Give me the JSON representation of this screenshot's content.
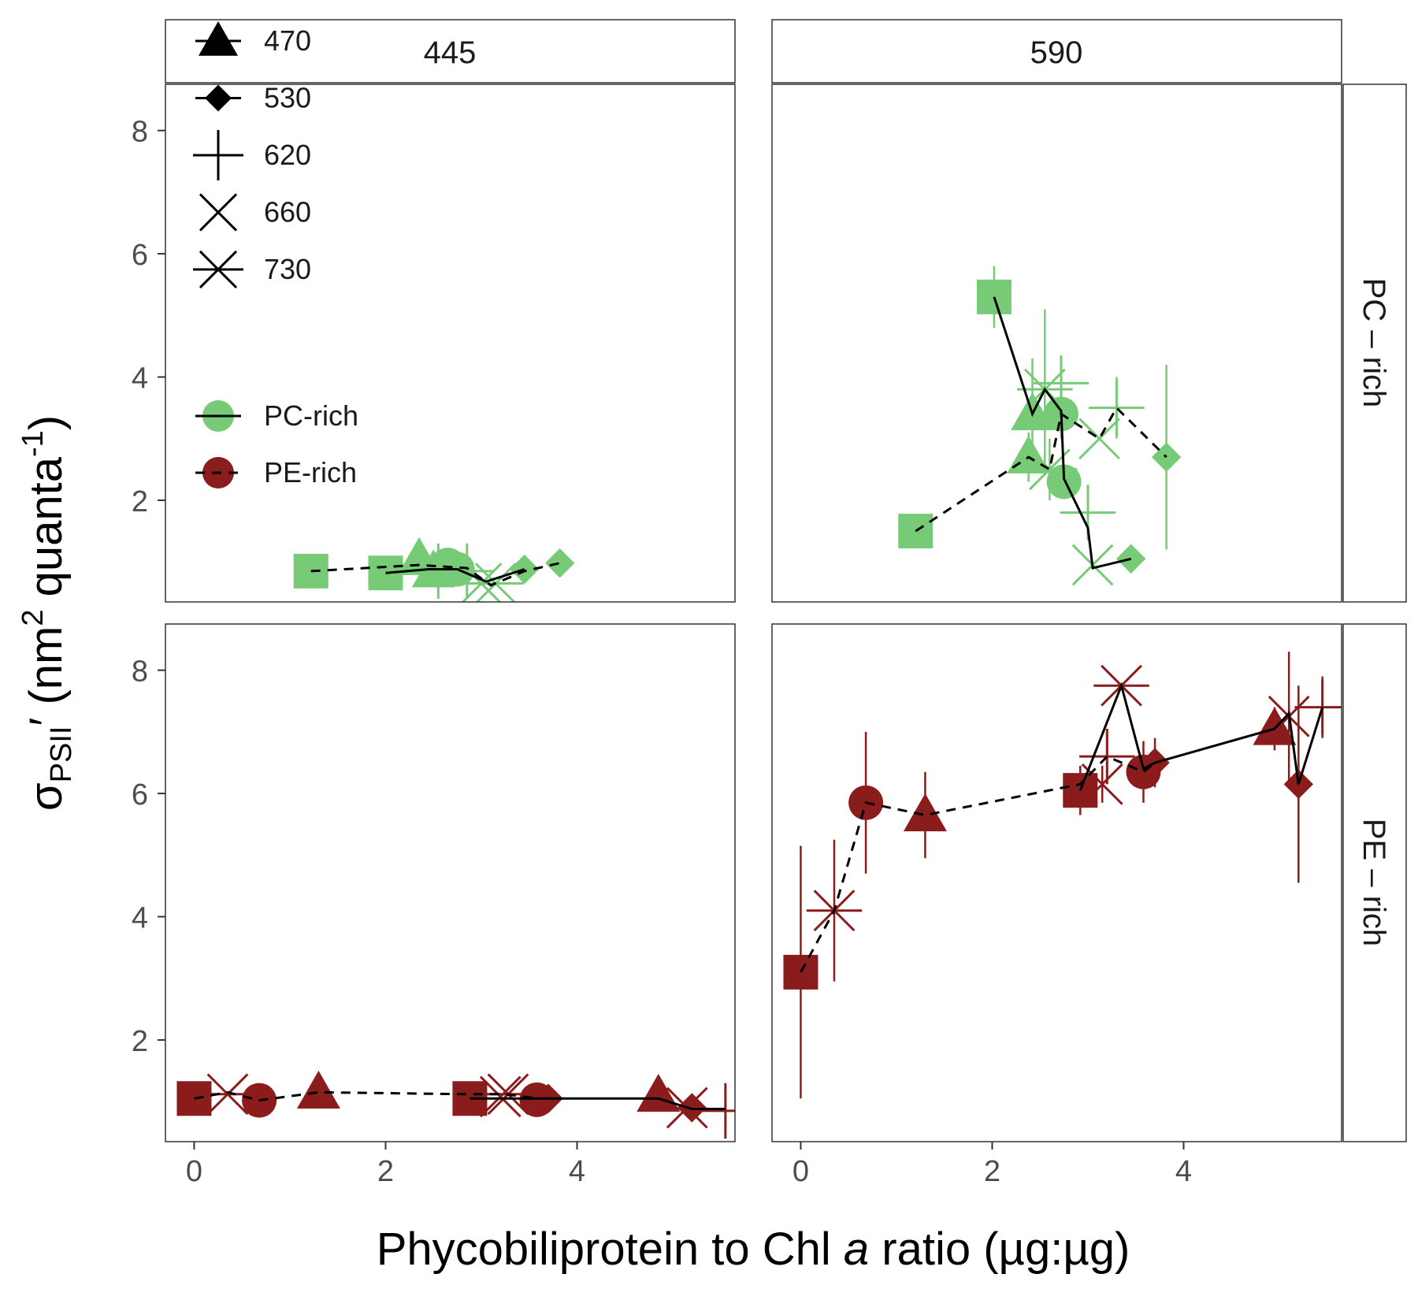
{
  "chart_data": {
    "type": "scatter",
    "facet_columns": [
      "445",
      "590"
    ],
    "facet_rows": [
      "PC – rich",
      "PE – rich"
    ],
    "xlabel_parts": [
      "Phycobiliprotein to Chl ",
      "a",
      " ratio (µg:µg)"
    ],
    "ylabel_parts": [
      "σ",
      "PSII",
      "′ (nm",
      "2",
      " quanta",
      "-1",
      ")"
    ],
    "xlim": [
      -0.3,
      5.65
    ],
    "ylim": [
      0.35,
      8.75
    ],
    "x_ticks": [
      0,
      2,
      4
    ],
    "y_ticks": [
      2,
      4,
      6,
      8
    ],
    "shape_legend": [
      {
        "label": "470",
        "shape": "triangle-icon"
      },
      {
        "label": "530",
        "shape": "diamond-icon"
      },
      {
        "label": "620",
        "shape": "plus-icon"
      },
      {
        "label": "660",
        "shape": "cross-icon"
      },
      {
        "label": "730",
        "shape": "asterisk-icon"
      }
    ],
    "group_legend": [
      {
        "label": "PC-rich",
        "line": "solid"
      },
      {
        "label": "PE-rich",
        "line": "dashed"
      }
    ],
    "colors": {
      "PC-rich": "#77cb77",
      "PE-rich": "#8b1c1c",
      "line": "#000000"
    },
    "panels": [
      {
        "col": "445",
        "row": "PC – rich",
        "color": "PC-rich",
        "paths": [
          {
            "style": "dashed",
            "points": [
              [
                1.22,
                0.85
              ],
              [
                2.35,
                0.95
              ],
              [
                2.85,
                0.9
              ],
              [
                3.1,
                0.62
              ],
              [
                3.45,
                0.85
              ],
              [
                3.82,
                0.98
              ]
            ]
          },
          {
            "style": "solid",
            "points": [
              [
                2.0,
                0.82
              ],
              [
                2.45,
                0.88
              ],
              [
                2.75,
                0.88
              ],
              [
                3.05,
                0.68
              ],
              [
                3.45,
                0.88
              ]
            ]
          }
        ],
        "points": [
          {
            "x": 1.22,
            "y": 0.85,
            "shape": "square"
          },
          {
            "x": 2.0,
            "y": 0.82,
            "shape": "square"
          },
          {
            "x": 2.35,
            "y": 1.05,
            "shape": "triangle"
          },
          {
            "x": 2.5,
            "y": 0.85,
            "shape": "triangle"
          },
          {
            "x": 2.65,
            "y": 0.95,
            "shape": "circle"
          },
          {
            "x": 2.75,
            "y": 0.88,
            "shape": "circle"
          },
          {
            "x": 2.55,
            "y": 0.85,
            "shape": "plus",
            "err": 0.2
          },
          {
            "x": 2.85,
            "y": 0.85,
            "shape": "plus",
            "err": 0.15
          },
          {
            "x": 3.0,
            "y": 0.65,
            "shape": "cross"
          },
          {
            "x": 3.15,
            "y": 0.65,
            "shape": "asterisk"
          },
          {
            "x": 3.45,
            "y": 0.88,
            "shape": "diamond"
          },
          {
            "x": 3.82,
            "y": 0.98,
            "shape": "diamond"
          }
        ]
      },
      {
        "col": "590",
        "row": "PC – rich",
        "color": "PC-rich",
        "paths": [
          {
            "style": "solid",
            "points": [
              [
                2.02,
                5.3
              ],
              [
                2.42,
                3.4
              ],
              [
                2.55,
                3.8
              ],
              [
                2.72,
                3.45
              ],
              [
                2.75,
                2.35
              ],
              [
                3.0,
                1.55
              ],
              [
                3.05,
                0.9
              ],
              [
                3.45,
                1.05
              ]
            ]
          },
          {
            "style": "dashed",
            "points": [
              [
                1.2,
                1.5
              ],
              [
                2.38,
                2.7
              ],
              [
                2.6,
                2.5
              ],
              [
                2.72,
                3.4
              ],
              [
                3.12,
                3.0
              ],
              [
                3.3,
                3.5
              ],
              [
                3.82,
                2.7
              ]
            ]
          }
        ],
        "points": [
          {
            "x": 2.02,
            "y": 5.3,
            "shape": "square",
            "err": 0.5
          },
          {
            "x": 1.2,
            "y": 1.5,
            "shape": "square"
          },
          {
            "x": 2.42,
            "y": 3.4,
            "shape": "triangle",
            "err": 0.9
          },
          {
            "x": 2.38,
            "y": 2.7,
            "shape": "triangle",
            "err": 0.4
          },
          {
            "x": 2.72,
            "y": 3.4,
            "shape": "circle",
            "err": 0.4
          },
          {
            "x": 2.75,
            "y": 2.3,
            "shape": "circle"
          },
          {
            "x": 2.72,
            "y": 3.9,
            "shape": "plus",
            "err": 0.4
          },
          {
            "x": 3.3,
            "y": 3.5,
            "shape": "plus",
            "err": 0.5
          },
          {
            "x": 3.0,
            "y": 1.8,
            "shape": "plus",
            "err": 0.4
          },
          {
            "x": 2.55,
            "y": 3.8,
            "shape": "asterisk",
            "err": 1.3
          },
          {
            "x": 2.6,
            "y": 2.5,
            "shape": "asterisk",
            "err": 0.5
          },
          {
            "x": 3.12,
            "y": 3.0,
            "shape": "cross"
          },
          {
            "x": 3.05,
            "y": 0.95,
            "shape": "cross"
          },
          {
            "x": 3.82,
            "y": 2.7,
            "shape": "diamond",
            "err": 1.5
          },
          {
            "x": 3.45,
            "y": 1.05,
            "shape": "diamond"
          }
        ]
      },
      {
        "col": "445",
        "row": "PE – rich",
        "color": "PE-rich",
        "paths": [
          {
            "style": "dashed",
            "points": [
              [
                0.0,
                1.05
              ],
              [
                0.35,
                1.15
              ],
              [
                0.68,
                1.02
              ],
              [
                1.3,
                1.15
              ],
              [
                2.88,
                1.12
              ],
              [
                3.25,
                1.12
              ],
              [
                3.6,
                1.05
              ]
            ]
          },
          {
            "style": "solid",
            "points": [
              [
                2.88,
                1.05
              ],
              [
                3.25,
                1.05
              ],
              [
                4.85,
                1.05
              ],
              [
                5.2,
                0.88
              ],
              [
                5.55,
                0.88
              ]
            ]
          }
        ],
        "points": [
          {
            "x": 0.0,
            "y": 1.05,
            "shape": "square"
          },
          {
            "x": 0.35,
            "y": 1.12,
            "shape": "asterisk"
          },
          {
            "x": 0.68,
            "y": 1.02,
            "shape": "circle"
          },
          {
            "x": 1.3,
            "y": 1.15,
            "shape": "triangle"
          },
          {
            "x": 2.88,
            "y": 1.05,
            "shape": "square"
          },
          {
            "x": 3.2,
            "y": 1.08,
            "shape": "cross"
          },
          {
            "x": 3.28,
            "y": 1.12,
            "shape": "asterisk"
          },
          {
            "x": 3.58,
            "y": 1.03,
            "shape": "circle"
          },
          {
            "x": 3.7,
            "y": 1.05,
            "shape": "diamond"
          },
          {
            "x": 4.85,
            "y": 1.1,
            "shape": "triangle"
          },
          {
            "x": 5.15,
            "y": 0.9,
            "shape": "cross"
          },
          {
            "x": 5.2,
            "y": 0.9,
            "shape": "diamond"
          },
          {
            "x": 5.55,
            "y": 0.85,
            "shape": "plus",
            "err": 0.3
          }
        ]
      },
      {
        "col": "590",
        "row": "PE – rich",
        "color": "PE-rich",
        "paths": [
          {
            "style": "dashed",
            "points": [
              [
                0.0,
                3.1
              ],
              [
                0.35,
                4.1
              ],
              [
                0.68,
                5.85
              ],
              [
                1.3,
                5.65
              ],
              [
                2.92,
                6.15
              ],
              [
                3.2,
                6.6
              ],
              [
                3.58,
                6.35
              ],
              [
                3.7,
                6.5
              ]
            ]
          },
          {
            "style": "solid",
            "points": [
              [
                2.92,
                6.05
              ],
              [
                3.35,
                7.75
              ],
              [
                3.58,
                6.4
              ],
              [
                3.7,
                6.5
              ],
              [
                4.95,
                7.05
              ],
              [
                5.1,
                7.3
              ],
              [
                5.2,
                6.15
              ],
              [
                5.45,
                7.4
              ]
            ]
          }
        ],
        "points": [
          {
            "x": 0.0,
            "y": 3.1,
            "shape": "square",
            "err": 2.05
          },
          {
            "x": 0.35,
            "y": 4.1,
            "shape": "asterisk",
            "err": 1.15
          },
          {
            "x": 0.68,
            "y": 5.85,
            "shape": "circle",
            "err": 1.15
          },
          {
            "x": 1.3,
            "y": 5.65,
            "shape": "triangle",
            "err": 0.7
          },
          {
            "x": 2.92,
            "y": 6.05,
            "shape": "square",
            "err": 0.4
          },
          {
            "x": 3.15,
            "y": 6.15,
            "shape": "cross",
            "err": 0.3
          },
          {
            "x": 3.2,
            "y": 6.6,
            "shape": "plus",
            "err": 0.35
          },
          {
            "x": 3.35,
            "y": 7.75,
            "shape": "asterisk"
          },
          {
            "x": 3.58,
            "y": 6.35,
            "shape": "circle",
            "err": 0.5
          },
          {
            "x": 3.7,
            "y": 6.5,
            "shape": "diamond",
            "err": 0.4
          },
          {
            "x": 4.95,
            "y": 7.05,
            "shape": "triangle",
            "err": 0.35
          },
          {
            "x": 5.1,
            "y": 7.25,
            "shape": "cross",
            "err": 1.05
          },
          {
            "x": 5.2,
            "y": 6.15,
            "shape": "diamond",
            "err": 1.6
          },
          {
            "x": 5.45,
            "y": 7.4,
            "shape": "plus",
            "err": 0.5
          }
        ]
      }
    ]
  }
}
